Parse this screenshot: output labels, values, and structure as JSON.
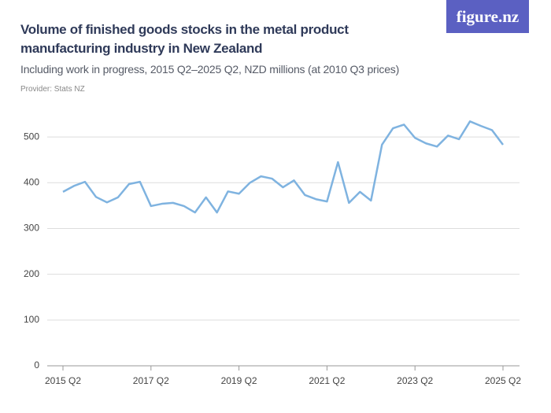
{
  "chart_data": {
    "type": "line",
    "title": "Volume of finished goods stocks in the metal product manufacturing industry in New Zealand",
    "subtitle": "Including work in progress, 2015 Q2–2025 Q2, NZD millions (at 2010 Q3 prices)",
    "provider": "Provider: Stats NZ",
    "logo": "figure.nz",
    "categories": [
      "2015 Q2",
      null,
      null,
      null,
      null,
      null,
      null,
      null,
      "2017 Q2",
      null,
      null,
      null,
      null,
      null,
      null,
      null,
      "2019 Q2",
      null,
      null,
      null,
      null,
      null,
      null,
      null,
      "2021 Q2",
      null,
      null,
      null,
      null,
      null,
      null,
      null,
      "2023 Q2",
      null,
      null,
      null,
      null,
      null,
      null,
      null,
      "2025 Q2"
    ],
    "values": [
      380,
      393,
      402,
      369,
      357,
      368,
      397,
      402,
      349,
      354,
      356,
      349,
      335,
      368,
      335,
      381,
      376,
      400,
      414,
      409,
      390,
      405,
      373,
      364,
      359,
      445,
      356,
      380,
      361,
      483,
      519,
      527,
      498,
      486,
      479,
      503,
      495,
      534,
      524,
      515,
      483
    ],
    "color": "#7fb3e0",
    "ylim": [
      0,
      550
    ],
    "yticks": [
      0,
      100,
      200,
      300,
      400,
      500
    ],
    "grid": true
  }
}
